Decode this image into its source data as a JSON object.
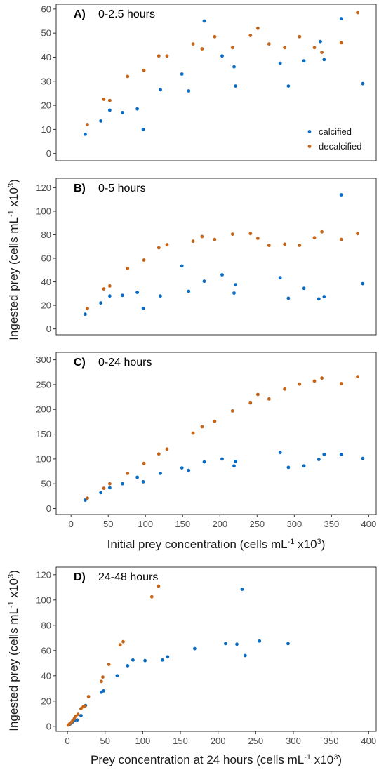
{
  "colors": {
    "calcified": "#0a6cc4",
    "decalcified": "#c4651a"
  },
  "legend": {
    "placement": "bottom-right-of-panel-A",
    "entries": [
      {
        "series": "calcified",
        "label": "calcified"
      },
      {
        "series": "decalcified",
        "label": "decalcified"
      }
    ]
  },
  "labels": {
    "ylabel_top": "Ingested prey (cells mL-1 x103)",
    "xlabel_top": "Initial prey concentration (cells mL-1 x103)",
    "ylabel_bottom": "Ingested prey (cells mL-1 x103)",
    "xlabel_bottom": "Prey concentration at 24 hours (cells mL-1 x103)"
  },
  "chart_data": [
    {
      "type": "scatter",
      "panel": "A)",
      "title": "0-2.5 hours",
      "xlim": [
        -20,
        410
      ],
      "ylim": [
        -3,
        62
      ],
      "yticks": [
        0,
        10,
        20,
        30,
        40,
        50,
        60
      ],
      "series": [
        {
          "name": "calcified",
          "points": [
            [
              19,
              8
            ],
            [
              40,
              13.5
            ],
            [
              52,
              18
            ],
            [
              69,
              17
            ],
            [
              89,
              18.5
            ],
            [
              97,
              10
            ],
            [
              120,
              26.5
            ],
            [
              149,
              33
            ],
            [
              158,
              26
            ],
            [
              179,
              55
            ],
            [
              203,
              40.5
            ],
            [
              219,
              36
            ],
            [
              221,
              28
            ],
            [
              281,
              37.5
            ],
            [
              292,
              28
            ],
            [
              313,
              38.5
            ],
            [
              335,
              46.5
            ],
            [
              340,
              39
            ],
            [
              363,
              56
            ],
            [
              392,
              29
            ]
          ]
        },
        {
          "name": "decalcified",
          "points": [
            [
              22,
              12
            ],
            [
              44,
              22.5
            ],
            [
              52,
              22
            ],
            [
              76,
              32
            ],
            [
              98,
              34.5
            ],
            [
              118,
              40.5
            ],
            [
              129,
              40.5
            ],
            [
              164,
              45.5
            ],
            [
              176,
              43.5
            ],
            [
              193,
              48.5
            ],
            [
              217,
              44
            ],
            [
              241,
              49
            ],
            [
              251,
              52
            ],
            [
              266,
              45.5
            ],
            [
              287,
              44
            ],
            [
              307,
              48.5
            ],
            [
              327,
              44
            ],
            [
              337,
              42
            ],
            [
              363,
              46
            ],
            [
              385,
              58.5
            ]
          ]
        }
      ]
    },
    {
      "type": "scatter",
      "panel": "B)",
      "title": "0-5 hours",
      "xlim": [
        -20,
        410
      ],
      "ylim": [
        -5,
        128
      ],
      "yticks": [
        0,
        20,
        40,
        60,
        80,
        100,
        120
      ],
      "series": [
        {
          "name": "calcified",
          "points": [
            [
              19,
              12.5
            ],
            [
              40,
              22
            ],
            [
              52,
              28
            ],
            [
              69,
              28.5
            ],
            [
              89,
              31
            ],
            [
              97,
              17.5
            ],
            [
              120,
              28
            ],
            [
              149,
              53.5
            ],
            [
              158,
              32
            ],
            [
              179,
              40.5
            ],
            [
              203,
              46
            ],
            [
              219,
              30.5
            ],
            [
              221,
              37.5
            ],
            [
              281,
              43.5
            ],
            [
              292,
              26
            ],
            [
              313,
              34.5
            ],
            [
              333,
              25.5
            ],
            [
              340,
              27.5
            ],
            [
              363,
              114
            ],
            [
              392,
              38.5
            ]
          ]
        },
        {
          "name": "decalcified",
          "points": [
            [
              22,
              17.5
            ],
            [
              44,
              34
            ],
            [
              52,
              36.5
            ],
            [
              76,
              51.5
            ],
            [
              98,
              58.5
            ],
            [
              118,
              69
            ],
            [
              129,
              71.5
            ],
            [
              164,
              74.5
            ],
            [
              176,
              78.5
            ],
            [
              193,
              76
            ],
            [
              217,
              80.5
            ],
            [
              241,
              81
            ],
            [
              251,
              77
            ],
            [
              266,
              71
            ],
            [
              287,
              72
            ],
            [
              307,
              71
            ],
            [
              327,
              77.5
            ],
            [
              337,
              82.5
            ],
            [
              363,
              76
            ],
            [
              385,
              81
            ]
          ]
        }
      ]
    },
    {
      "type": "scatter",
      "panel": "C)",
      "title": "0-24 hours",
      "xlim": [
        -20,
        410
      ],
      "ylim": [
        -12,
        315
      ],
      "yticks": [
        0,
        50,
        100,
        150,
        200,
        250,
        300
      ],
      "xticks": [
        0,
        50,
        100,
        150,
        200,
        250,
        300,
        350,
        400
      ],
      "series": [
        {
          "name": "calcified",
          "points": [
            [
              19,
              17
            ],
            [
              40,
              32
            ],
            [
              52,
              42
            ],
            [
              69,
              50
            ],
            [
              89,
              63
            ],
            [
              97,
              54
            ],
            [
              120,
              71
            ],
            [
              149,
              82
            ],
            [
              158,
              77
            ],
            [
              179,
              94
            ],
            [
              203,
              100
            ],
            [
              219,
              86
            ],
            [
              221,
              95
            ],
            [
              281,
              113
            ],
            [
              292,
              83
            ],
            [
              313,
              86
            ],
            [
              333,
              99
            ],
            [
              340,
              109
            ],
            [
              363,
              109
            ],
            [
              392,
              101
            ]
          ]
        },
        {
          "name": "decalcified",
          "points": [
            [
              22,
              21
            ],
            [
              44,
              41
            ],
            [
              52,
              50
            ],
            [
              76,
              71
            ],
            [
              98,
              91
            ],
            [
              118,
              110
            ],
            [
              129,
              120
            ],
            [
              164,
              152
            ],
            [
              176,
              165
            ],
            [
              193,
              176
            ],
            [
              217,
              197
            ],
            [
              241,
              213
            ],
            [
              251,
              230
            ],
            [
              266,
              221
            ],
            [
              287,
              241
            ],
            [
              307,
              251
            ],
            [
              327,
              257
            ],
            [
              337,
              263
            ],
            [
              363,
              252
            ],
            [
              385,
              266
            ]
          ]
        }
      ]
    },
    {
      "type": "scatter",
      "panel": "D)",
      "title": "24-48 hours",
      "xlim": [
        -15,
        410
      ],
      "ylim": [
        -4,
        126
      ],
      "yticks": [
        0,
        20,
        40,
        60,
        80,
        100,
        120
      ],
      "xticks": [
        0,
        50,
        100,
        150,
        200,
        250,
        300,
        350,
        400
      ],
      "series": [
        {
          "name": "calcified",
          "points": [
            [
              3,
              1.5
            ],
            [
              5,
              2.5
            ],
            [
              7,
              3.5
            ],
            [
              10,
              5
            ],
            [
              13,
              5
            ],
            [
              18,
              8.5
            ],
            [
              24,
              16.5
            ],
            [
              45,
              27
            ],
            [
              48,
              28
            ],
            [
              66,
              40
            ],
            [
              80,
              48
            ],
            [
              87,
              52.5
            ],
            [
              103,
              52
            ],
            [
              126,
              52.5
            ],
            [
              133,
              55
            ],
            [
              169,
              61.5
            ],
            [
              210,
              65.5
            ],
            [
              225,
              65
            ],
            [
              232,
              108.5
            ],
            [
              236,
              56
            ],
            [
              255,
              67.5
            ],
            [
              293,
              65.5
            ]
          ]
        },
        {
          "name": "decalcified",
          "points": [
            [
              1,
              1
            ],
            [
              3,
              2
            ],
            [
              5,
              3
            ],
            [
              7,
              4.5
            ],
            [
              9,
              6
            ],
            [
              11,
              8
            ],
            [
              14,
              9.5
            ],
            [
              18,
              14
            ],
            [
              21,
              15.5
            ],
            [
              23,
              16
            ],
            [
              28,
              23.5
            ],
            [
              45,
              35.5
            ],
            [
              47,
              39
            ],
            [
              55,
              49
            ],
            [
              70,
              64.5
            ],
            [
              74,
              67
            ],
            [
              112,
              102.5
            ],
            [
              121,
              111
            ]
          ]
        }
      ]
    }
  ]
}
